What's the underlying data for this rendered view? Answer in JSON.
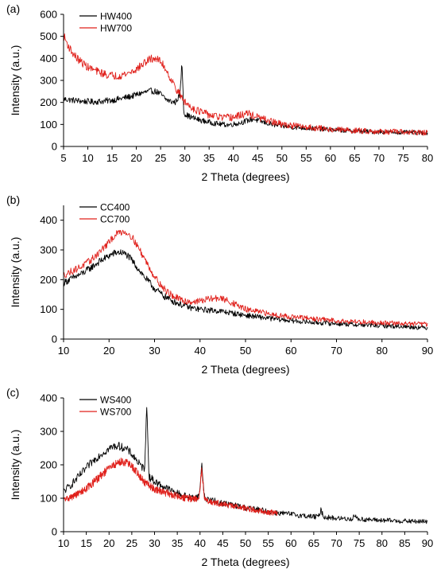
{
  "chart_data": [
    {
      "type": "line",
      "panel_label": "(a)",
      "xlabel": "2 Theta (degrees)",
      "ylabel": "Intensity (a.u.)",
      "xlim": [
        5,
        80
      ],
      "ylim": [
        0,
        600
      ],
      "xticks": [
        5,
        10,
        15,
        20,
        25,
        30,
        35,
        40,
        45,
        50,
        55,
        60,
        65,
        70,
        75,
        80
      ],
      "yticks": [
        0,
        100,
        200,
        300,
        400,
        500,
        600
      ],
      "legend_position": "top-left",
      "series": [
        {
          "name": "HW400",
          "color": "#000000",
          "x": [
            5,
            7,
            9,
            11,
            13,
            15,
            17,
            19,
            21,
            23,
            24,
            25,
            26,
            27,
            28,
            29,
            29.4,
            29.8,
            31,
            33,
            35,
            37,
            39,
            41,
            43,
            44,
            45,
            47,
            49,
            52,
            56,
            60,
            65,
            70,
            75,
            80
          ],
          "y": [
            215,
            210,
            205,
            203,
            205,
            210,
            218,
            228,
            242,
            252,
            250,
            238,
            215,
            205,
            200,
            235,
            385,
            150,
            135,
            120,
            110,
            102,
            98,
            105,
            118,
            125,
            118,
            105,
            95,
            88,
            82,
            76,
            70,
            66,
            64,
            62
          ],
          "noise": 14
        },
        {
          "name": "HW700",
          "color": "#e0201b",
          "x": [
            5,
            6,
            7,
            8,
            10,
            12,
            14,
            16,
            18,
            20,
            22,
            23,
            24,
            25,
            26,
            27,
            28,
            29,
            30,
            32,
            34,
            36,
            38,
            40,
            42,
            43,
            44,
            46,
            48,
            50,
            55,
            60,
            65,
            70,
            75,
            80
          ],
          "y": [
            505,
            455,
            420,
            395,
            360,
            340,
            325,
            320,
            330,
            350,
            385,
            398,
            400,
            385,
            355,
            310,
            270,
            235,
            200,
            170,
            150,
            138,
            130,
            132,
            145,
            150,
            140,
            125,
            112,
            100,
            88,
            78,
            72,
            68,
            65,
            62
          ],
          "noise": 18
        }
      ]
    },
    {
      "type": "line",
      "panel_label": "(b)",
      "xlabel": "2 Theta (degrees)",
      "ylabel": "Intensity (a.u.)",
      "xlim": [
        10,
        90
      ],
      "ylim": [
        0,
        450
      ],
      "xticks": [
        10,
        20,
        30,
        40,
        50,
        60,
        70,
        80,
        90
      ],
      "yticks": [
        0,
        100,
        200,
        300,
        400
      ],
      "legend_position": "top-left",
      "series": [
        {
          "name": "CC400",
          "color": "#000000",
          "x": [
            10,
            12,
            14,
            16,
            18,
            20,
            21,
            22,
            23,
            24,
            25,
            26,
            28,
            30,
            32,
            34,
            36,
            38,
            40,
            42,
            44,
            46,
            50,
            55,
            60,
            65,
            70,
            75,
            80,
            85,
            90
          ],
          "y": [
            190,
            205,
            220,
            240,
            262,
            280,
            288,
            292,
            290,
            282,
            265,
            245,
            205,
            170,
            145,
            128,
            115,
            105,
            100,
            97,
            95,
            90,
            80,
            70,
            62,
            56,
            52,
            48,
            45,
            42,
            38
          ],
          "noise": 12
        },
        {
          "name": "CC700",
          "color": "#e0201b",
          "x": [
            10,
            12,
            14,
            16,
            18,
            20,
            21,
            22,
            23,
            24,
            25,
            26,
            28,
            30,
            32,
            34,
            36,
            38,
            40,
            42,
            44,
            46,
            48,
            50,
            55,
            60,
            65,
            70,
            75,
            80,
            85,
            90
          ],
          "y": [
            215,
            230,
            245,
            265,
            295,
            325,
            345,
            358,
            362,
            358,
            345,
            320,
            265,
            210,
            170,
            145,
            130,
            125,
            128,
            135,
            138,
            130,
            115,
            100,
            85,
            75,
            68,
            62,
            58,
            55,
            52,
            50
          ],
          "noise": 12
        }
      ]
    },
    {
      "type": "line",
      "panel_label": "(c)",
      "xlabel": "2 Theta (degrees)",
      "ylabel": "Intensity (a.u.)",
      "xlim": [
        10,
        90
      ],
      "ylim": [
        0,
        400
      ],
      "xticks": [
        10,
        15,
        20,
        25,
        30,
        35,
        40,
        45,
        50,
        55,
        60,
        65,
        70,
        75,
        80,
        85,
        90
      ],
      "yticks": [
        0,
        100,
        200,
        300,
        400
      ],
      "legend_position": "top-left",
      "series": [
        {
          "name": "WS400",
          "color": "#000000",
          "x": [
            10,
            12,
            14,
            16,
            18,
            20,
            21,
            22,
            23,
            24,
            25,
            26,
            27,
            27.8,
            28.3,
            28.8,
            30,
            32,
            34,
            36,
            38,
            39.8,
            40.4,
            41,
            43,
            45,
            47,
            50,
            53,
            56,
            60,
            64,
            66,
            66.6,
            67.2,
            70,
            73.5,
            74,
            74.5,
            78,
            82,
            86,
            90
          ],
          "y": [
            120,
            145,
            175,
            205,
            230,
            248,
            255,
            257,
            252,
            245,
            232,
            215,
            195,
            190,
            375,
            165,
            150,
            135,
            120,
            110,
            102,
            105,
            200,
            100,
            92,
            85,
            80,
            72,
            65,
            58,
            52,
            46,
            44,
            65,
            44,
            40,
            38,
            52,
            38,
            35,
            33,
            31,
            30
          ],
          "noise": 12
        },
        {
          "name": "WS700",
          "color": "#e0201b",
          "x": [
            10,
            12,
            14,
            16,
            18,
            20,
            22,
            23,
            24,
            25,
            26,
            27,
            28,
            30,
            32,
            34,
            36,
            38,
            39.8,
            40.4,
            41,
            43,
            45,
            48,
            50,
            52,
            55,
            57
          ],
          "y": [
            95,
            105,
            120,
            140,
            165,
            190,
            207,
            210,
            205,
            195,
            180,
            160,
            145,
            128,
            118,
            110,
            103,
            98,
            98,
            190,
            95,
            88,
            82,
            75,
            70,
            65,
            58,
            55
          ],
          "noise": 12
        }
      ]
    }
  ]
}
